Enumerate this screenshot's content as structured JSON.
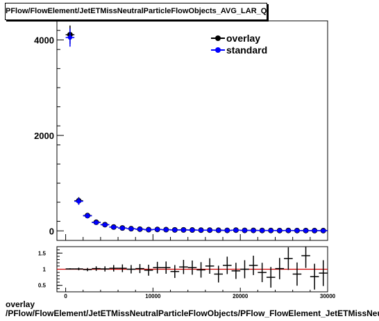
{
  "title": "PFlow/FlowElement/JetETMissNeutralParticleFlowObjects_AVG_LAR_Q",
  "footer": {
    "line1": "overlay",
    "line2": "/PFlow/FlowElement/JetETMissNeutralParticleFlowObjects/PFlow_FlowElement_JetETMissNeutralParticleFlowObjects_AVG_LAR_Q"
  },
  "colors": {
    "overlay": "#000000",
    "standard": "#0000ff",
    "ratio_line": "#cc0000"
  },
  "chart_data": [
    {
      "type": "scatter",
      "panel": "main",
      "xlim": [
        -1000,
        30000
      ],
      "ylim": [
        -200,
        4400
      ],
      "yticks": [
        0,
        2000,
        4000
      ],
      "ytick_labels": [
        "0",
        "2000",
        "4000"
      ],
      "legend_position": "top-right",
      "series": [
        {
          "name": "overlay",
          "x": [
            500,
            1500,
            2500,
            3500,
            4500,
            5500,
            6500,
            7500,
            8500,
            9500,
            10500,
            11500,
            12500,
            13500,
            14500,
            15500,
            16500,
            17500,
            18500,
            19500,
            20500,
            21500,
            22500,
            23500,
            24500,
            25500,
            26500,
            27500,
            28500,
            29500
          ],
          "values": [
            4110,
            630,
            320,
            180,
            130,
            80,
            60,
            45,
            35,
            25,
            30,
            25,
            20,
            20,
            18,
            15,
            15,
            12,
            10,
            15,
            10,
            10,
            8,
            8,
            6,
            8,
            6,
            6,
            5,
            5
          ]
        },
        {
          "name": "standard",
          "x": [
            500,
            1500,
            2500,
            3500,
            4500,
            5500,
            6500,
            7500,
            8500,
            9500,
            10500,
            11500,
            12500,
            13500,
            14500,
            15500,
            16500,
            17500,
            18500,
            19500,
            20500,
            21500,
            22500,
            23500,
            24500,
            25500,
            26500,
            27500,
            28500,
            29500
          ],
          "values": [
            4050,
            620,
            315,
            175,
            128,
            78,
            58,
            44,
            34,
            24,
            29,
            24,
            19,
            19,
            17,
            14,
            14,
            11,
            10,
            14,
            10,
            9,
            8,
            7,
            6,
            7,
            6,
            5,
            5,
            4
          ]
        }
      ]
    },
    {
      "type": "scatter",
      "panel": "ratio",
      "xlim": [
        -1000,
        30000
      ],
      "ylim": [
        0.3,
        1.7
      ],
      "yticks": [
        0.5,
        1,
        1.5
      ],
      "ytick_labels": [
        "0.5",
        "1",
        "1.5"
      ],
      "xticks": [
        0,
        10000,
        20000,
        30000
      ],
      "xtick_labels": [
        "0",
        "10000",
        "20000",
        "30000"
      ],
      "reference_line": 1,
      "x": [
        500,
        1500,
        2500,
        3500,
        4500,
        5500,
        6500,
        7500,
        8500,
        9500,
        10500,
        11500,
        12500,
        13500,
        14500,
        15500,
        16500,
        17500,
        18500,
        19500,
        20500,
        21500,
        22500,
        23500,
        24500,
        25500,
        26500,
        27500,
        28500,
        29500
      ],
      "values": [
        1.01,
        1.01,
        0.99,
        1.02,
        1.01,
        1.03,
        1.03,
        1.0,
        1.02,
        0.97,
        1.05,
        1.05,
        0.93,
        1.07,
        1.05,
        0.98,
        1.1,
        0.85,
        1.12,
        0.95,
        1.0,
        1.12,
        0.9,
        0.75,
        1.02,
        1.33,
        0.85,
        1.42,
        0.77,
        0.88
      ],
      "errors": [
        0.02,
        0.04,
        0.05,
        0.07,
        0.08,
        0.1,
        0.12,
        0.13,
        0.14,
        0.17,
        0.18,
        0.19,
        0.2,
        0.22,
        0.22,
        0.24,
        0.24,
        0.26,
        0.27,
        0.25,
        0.28,
        0.3,
        0.3,
        0.32,
        0.33,
        0.35,
        0.36,
        0.38,
        0.4,
        0.4
      ]
    }
  ]
}
